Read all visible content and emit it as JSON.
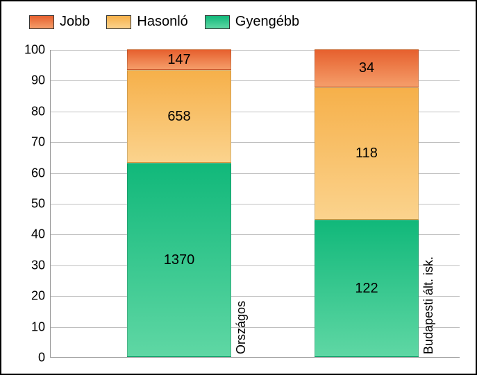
{
  "chart": {
    "type": "stacked-bar-100",
    "background_color": "#ffffff",
    "border_color": "#000000",
    "grid_color": "#bfbfbf",
    "text_color": "#000000",
    "label_fontsize": 18,
    "value_fontsize": 20,
    "legend_fontsize": 20,
    "ylim_min": 0,
    "ylim_max": 100,
    "ytick_step": 10,
    "yticks": [
      {
        "v": 0,
        "label": "0"
      },
      {
        "v": 10,
        "label": "10"
      },
      {
        "v": 20,
        "label": "20"
      },
      {
        "v": 30,
        "label": "30"
      },
      {
        "v": 40,
        "label": "40"
      },
      {
        "v": 50,
        "label": "50"
      },
      {
        "v": 60,
        "label": "60"
      },
      {
        "v": 70,
        "label": "70"
      },
      {
        "v": 80,
        "label": "80"
      },
      {
        "v": 90,
        "label": "90"
      },
      {
        "v": 100,
        "label": "100"
      }
    ],
    "series": {
      "jobb": {
        "label": "Jobb",
        "color_top": "#e6602e",
        "color_bottom": "#f59e6a"
      },
      "hasonlo": {
        "label": "Hasonló",
        "color_top": "#f6b04a",
        "color_bottom": "#fbd38d"
      },
      "gyengebb": {
        "label": "Gyengébb",
        "color_top": "#11b87a",
        "color_bottom": "#5fd7a4"
      }
    },
    "categories": [
      {
        "key": "orszagos",
        "axis_label": "Országos",
        "values": {
          "gyengebb": 1370,
          "hasonlo": 658,
          "jobb": 147
        },
        "percent": {
          "gyengebb": 63.0,
          "hasonlo": 30.2,
          "jobb": 6.8
        }
      },
      {
        "key": "budapesti",
        "axis_label": "Budapesti ált. isk.",
        "values": {
          "gyengebb": 122,
          "hasonlo": 118,
          "jobb": 34
        },
        "percent": {
          "gyengebb": 44.5,
          "hasonlo": 43.1,
          "jobb": 12.4
        }
      }
    ]
  }
}
